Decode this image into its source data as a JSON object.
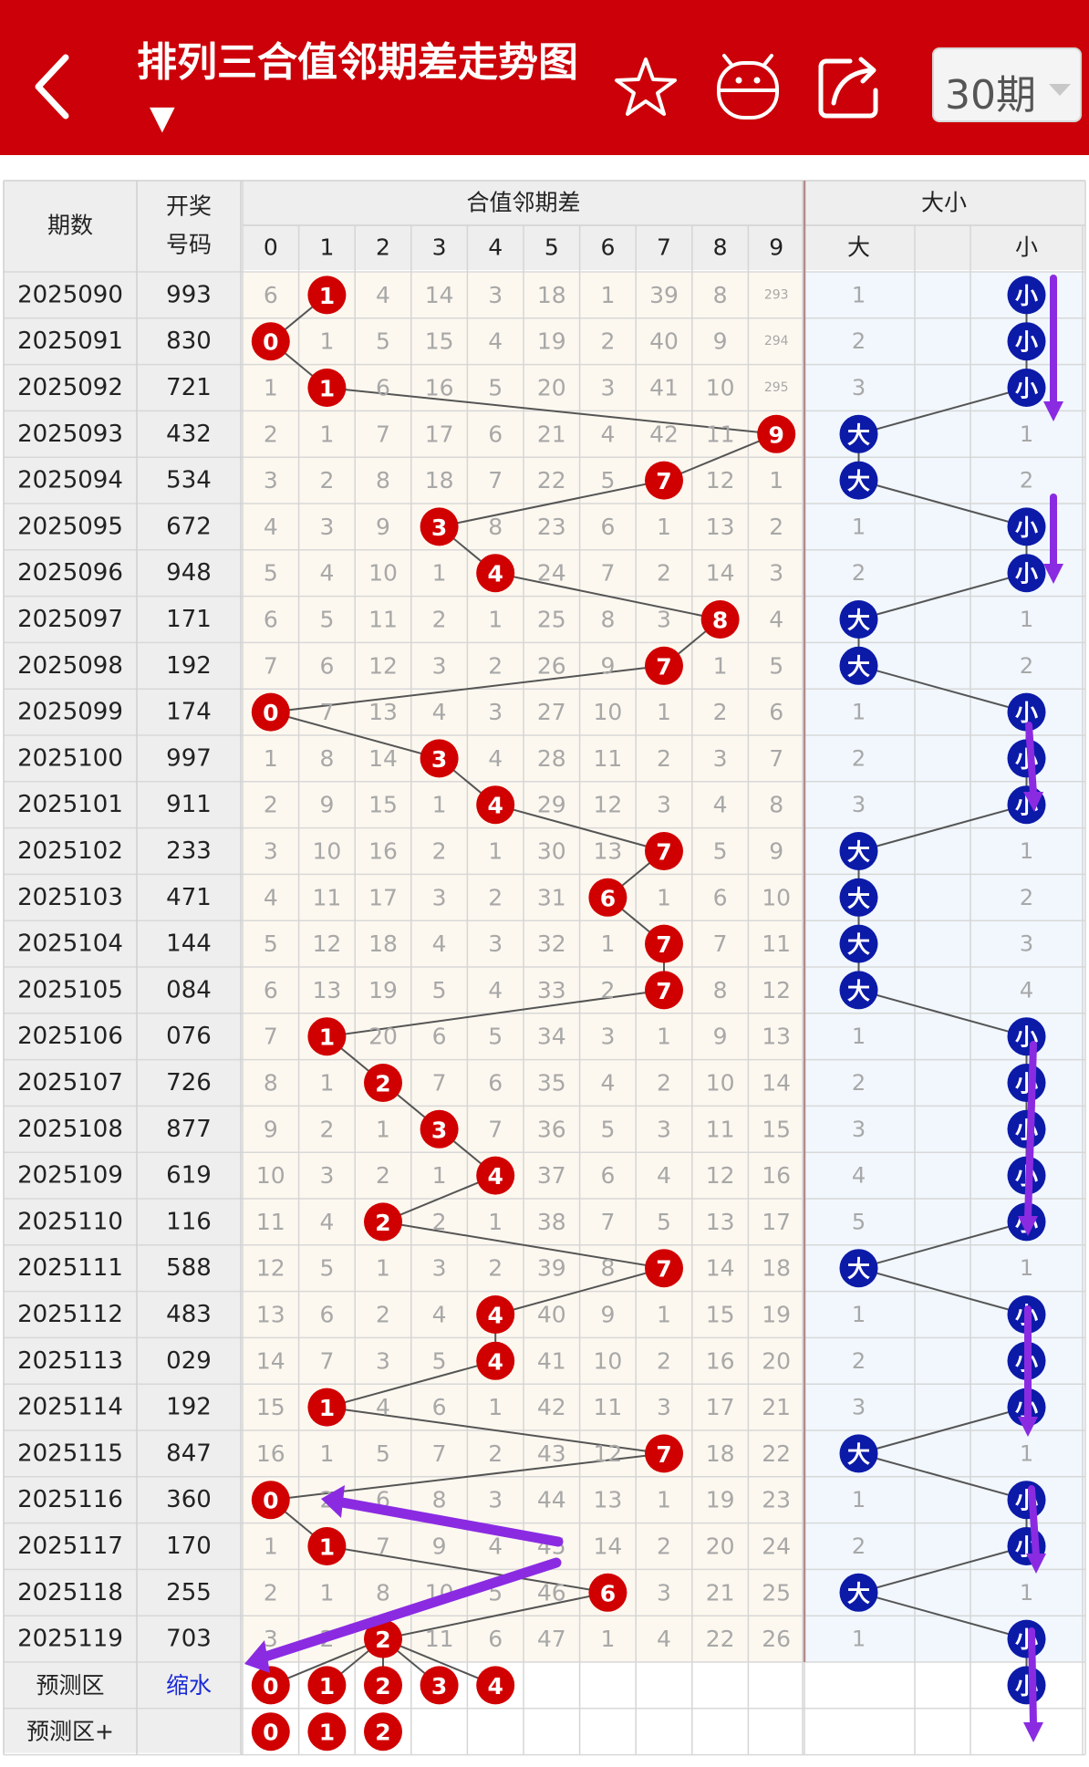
{
  "header": {
    "title": "排列三合值邻期差走势图",
    "period_selector": "30期",
    "icons": [
      "back-arrow-icon",
      "star-icon",
      "robot-icon",
      "share-icon",
      "dropdown-caret-icon"
    ]
  },
  "table": {
    "col_issue": "期数",
    "col_draw_line1": "开奖",
    "col_draw_line2": "号码",
    "group_diff": "合值邻期差",
    "group_size": "大小",
    "diff_digits": [
      "0",
      "1",
      "2",
      "3",
      "4",
      "5",
      "6",
      "7",
      "8",
      "9"
    ],
    "size_labels": [
      "大",
      "",
      "小",
      ""
    ],
    "rows": [
      {
        "issue": "2025090",
        "draw": "993",
        "cells": [
          "6",
          "1",
          "4",
          "14",
          "3",
          "18",
          "1",
          "39",
          "8",
          "293"
        ],
        "hit": 1,
        "big": "1",
        "size": "small",
        "small": "小"
      },
      {
        "issue": "2025091",
        "draw": "830",
        "cells": [
          "0",
          "1",
          "5",
          "15",
          "4",
          "19",
          "2",
          "40",
          "9",
          "294"
        ],
        "hit": 0,
        "big": "2",
        "size": "small",
        "small": "小"
      },
      {
        "issue": "2025092",
        "draw": "721",
        "cells": [
          "1",
          "1",
          "6",
          "16",
          "5",
          "20",
          "3",
          "41",
          "10",
          "295"
        ],
        "hit": 1,
        "big": "3",
        "size": "small",
        "small": "小"
      },
      {
        "issue": "2025093",
        "draw": "432",
        "cells": [
          "2",
          "1",
          "7",
          "17",
          "6",
          "21",
          "4",
          "42",
          "11",
          "9"
        ],
        "hit": 9,
        "big": "大",
        "size": "big",
        "small": "1"
      },
      {
        "issue": "2025094",
        "draw": "534",
        "cells": [
          "3",
          "2",
          "8",
          "18",
          "7",
          "22",
          "5",
          "7",
          "12",
          "1"
        ],
        "hit": 7,
        "big": "大",
        "size": "big",
        "small": "2"
      },
      {
        "issue": "2025095",
        "draw": "672",
        "cells": [
          "4",
          "3",
          "9",
          "3",
          "8",
          "23",
          "6",
          "1",
          "13",
          "2"
        ],
        "hit": 3,
        "big": "1",
        "size": "small",
        "small": "小"
      },
      {
        "issue": "2025096",
        "draw": "948",
        "cells": [
          "5",
          "4",
          "10",
          "1",
          "4",
          "24",
          "7",
          "2",
          "14",
          "3"
        ],
        "hit": 4,
        "big": "2",
        "size": "small",
        "small": "小"
      },
      {
        "issue": "2025097",
        "draw": "171",
        "cells": [
          "6",
          "5",
          "11",
          "2",
          "1",
          "25",
          "8",
          "3",
          "8",
          "4"
        ],
        "hit": 8,
        "big": "大",
        "size": "big",
        "small": "1"
      },
      {
        "issue": "2025098",
        "draw": "192",
        "cells": [
          "7",
          "6",
          "12",
          "3",
          "2",
          "26",
          "9",
          "7",
          "1",
          "5"
        ],
        "hit": 7,
        "big": "大",
        "size": "big",
        "small": "2"
      },
      {
        "issue": "2025099",
        "draw": "174",
        "cells": [
          "0",
          "7",
          "13",
          "4",
          "3",
          "27",
          "10",
          "1",
          "2",
          "6"
        ],
        "hit": 0,
        "big": "1",
        "size": "small",
        "small": "小"
      },
      {
        "issue": "2025100",
        "draw": "997",
        "cells": [
          "1",
          "8",
          "14",
          "3",
          "4",
          "28",
          "11",
          "2",
          "3",
          "7"
        ],
        "hit": 3,
        "big": "2",
        "size": "small",
        "small": "小"
      },
      {
        "issue": "2025101",
        "draw": "911",
        "cells": [
          "2",
          "9",
          "15",
          "1",
          "4",
          "29",
          "12",
          "3",
          "4",
          "8"
        ],
        "hit": 4,
        "big": "3",
        "size": "small",
        "small": "小"
      },
      {
        "issue": "2025102",
        "draw": "233",
        "cells": [
          "3",
          "10",
          "16",
          "2",
          "1",
          "30",
          "13",
          "7",
          "5",
          "9"
        ],
        "hit": 7,
        "big": "大",
        "size": "big",
        "small": "1"
      },
      {
        "issue": "2025103",
        "draw": "471",
        "cells": [
          "4",
          "11",
          "17",
          "3",
          "2",
          "31",
          "6",
          "1",
          "6",
          "10"
        ],
        "hit": 6,
        "big": "大",
        "size": "big",
        "small": "2"
      },
      {
        "issue": "2025104",
        "draw": "144",
        "cells": [
          "5",
          "12",
          "18",
          "4",
          "3",
          "32",
          "1",
          "7",
          "7",
          "11"
        ],
        "hit": 7,
        "big": "大",
        "size": "big",
        "small": "3"
      },
      {
        "issue": "2025105",
        "draw": "084",
        "cells": [
          "6",
          "13",
          "19",
          "5",
          "4",
          "33",
          "2",
          "7",
          "8",
          "12"
        ],
        "hit": 7,
        "big": "大",
        "size": "big",
        "small": "4"
      },
      {
        "issue": "2025106",
        "draw": "076",
        "cells": [
          "7",
          "1",
          "20",
          "6",
          "5",
          "34",
          "3",
          "1",
          "9",
          "13"
        ],
        "hit": 1,
        "big": "1",
        "size": "small",
        "small": "小"
      },
      {
        "issue": "2025107",
        "draw": "726",
        "cells": [
          "8",
          "1",
          "2",
          "7",
          "6",
          "35",
          "4",
          "2",
          "10",
          "14"
        ],
        "hit": 2,
        "big": "2",
        "size": "small",
        "small": "小"
      },
      {
        "issue": "2025108",
        "draw": "877",
        "cells": [
          "9",
          "2",
          "1",
          "3",
          "7",
          "36",
          "5",
          "3",
          "11",
          "15"
        ],
        "hit": 3,
        "big": "3",
        "size": "small",
        "small": "小"
      },
      {
        "issue": "2025109",
        "draw": "619",
        "cells": [
          "10",
          "3",
          "2",
          "1",
          "4",
          "37",
          "6",
          "4",
          "12",
          "16"
        ],
        "hit": 4,
        "big": "4",
        "size": "small",
        "small": "小"
      },
      {
        "issue": "2025110",
        "draw": "116",
        "cells": [
          "11",
          "4",
          "2",
          "2",
          "1",
          "38",
          "7",
          "5",
          "13",
          "17"
        ],
        "hit": 2,
        "big": "5",
        "size": "small",
        "small": "小"
      },
      {
        "issue": "2025111",
        "draw": "588",
        "cells": [
          "12",
          "5",
          "1",
          "3",
          "2",
          "39",
          "8",
          "7",
          "14",
          "18"
        ],
        "hit": 7,
        "big": "大",
        "size": "big",
        "small": "1"
      },
      {
        "issue": "2025112",
        "draw": "483",
        "cells": [
          "13",
          "6",
          "2",
          "4",
          "4",
          "40",
          "9",
          "1",
          "15",
          "19"
        ],
        "hit": 4,
        "big": "1",
        "size": "small",
        "small": "小"
      },
      {
        "issue": "2025113",
        "draw": "029",
        "cells": [
          "14",
          "7",
          "3",
          "5",
          "4",
          "41",
          "10",
          "2",
          "16",
          "20"
        ],
        "hit": 4,
        "big": "2",
        "size": "small",
        "small": "小"
      },
      {
        "issue": "2025114",
        "draw": "192",
        "cells": [
          "15",
          "1",
          "4",
          "6",
          "1",
          "42",
          "11",
          "3",
          "17",
          "21"
        ],
        "hit": 1,
        "big": "3",
        "size": "small",
        "small": "小"
      },
      {
        "issue": "2025115",
        "draw": "847",
        "cells": [
          "16",
          "1",
          "5",
          "7",
          "2",
          "43",
          "12",
          "7",
          "18",
          "22"
        ],
        "hit": 7,
        "big": "大",
        "size": "big",
        "small": "1"
      },
      {
        "issue": "2025116",
        "draw": "360",
        "cells": [
          "0",
          "2",
          "6",
          "8",
          "3",
          "44",
          "13",
          "1",
          "19",
          "23"
        ],
        "hit": 0,
        "big": "1",
        "size": "small",
        "small": "小"
      },
      {
        "issue": "2025117",
        "draw": "170",
        "cells": [
          "1",
          "1",
          "7",
          "9",
          "4",
          "45",
          "14",
          "2",
          "20",
          "24"
        ],
        "hit": 1,
        "big": "2",
        "size": "small",
        "small": "小"
      },
      {
        "issue": "2025118",
        "draw": "255",
        "cells": [
          "2",
          "1",
          "8",
          "10",
          "5",
          "46",
          "6",
          "3",
          "21",
          "25"
        ],
        "hit": 6,
        "big": "大",
        "size": "big",
        "small": "1"
      },
      {
        "issue": "2025119",
        "draw": "703",
        "cells": [
          "3",
          "2",
          "2",
          "11",
          "6",
          "47",
          "1",
          "4",
          "22",
          "26"
        ],
        "hit": 2,
        "big": "1",
        "size": "small",
        "small": "小"
      }
    ],
    "predict_label": "预测区",
    "predict_draw": "缩水",
    "predict_balls": [
      "0",
      "1",
      "2",
      "3",
      "4"
    ],
    "predict_small": "小",
    "predict_plus_label": "预测区+",
    "predict_plus_balls": [
      "0",
      "1",
      "2"
    ]
  },
  "colors": {
    "header_red": "#cc0008",
    "ball_red": "#d10000",
    "ball_blue": "#0c1aa8",
    "annotation_purple": "#8a2be2",
    "miss_text": "#a8a8a8"
  }
}
